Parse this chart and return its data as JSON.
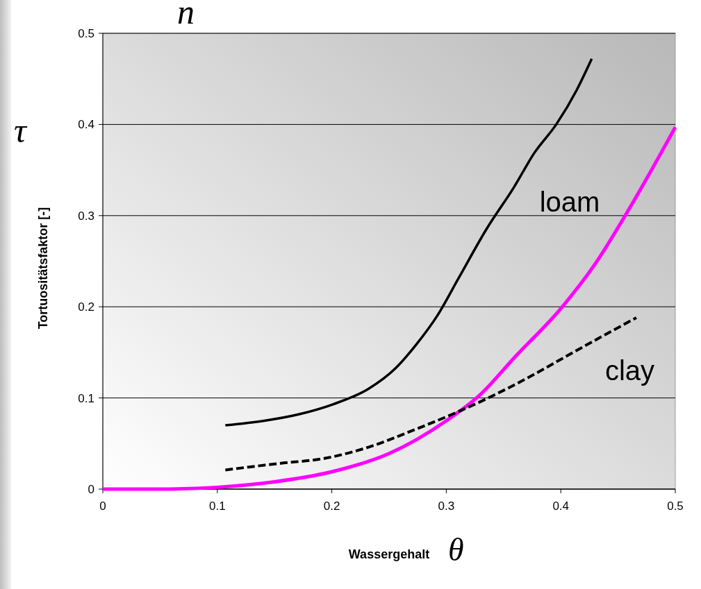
{
  "chart_data": {
    "type": "line",
    "xlabel": "Wassergehalt",
    "ylabel": "Tortuositätsfaktor [-]",
    "annotations": [
      "θ",
      "τ",
      "n"
    ],
    "xlim": [
      0,
      0.5
    ],
    "xticks": [
      0,
      0.1,
      0.2,
      0.3,
      0.4,
      0.5
    ],
    "ylim": [
      0,
      0.5
    ],
    "yticks": [
      0,
      0.1,
      0.2,
      0.3,
      0.4,
      0.5
    ],
    "grid": "y",
    "marker": "none",
    "series": [
      {
        "name": "loam",
        "color": "#000000",
        "line_style": "solid",
        "x": [
          0.107,
          0.141,
          0.171,
          0.201,
          0.232,
          0.256,
          0.274,
          0.292,
          0.311,
          0.335,
          0.359,
          0.377,
          0.396,
          0.414,
          0.427
        ],
        "values": [
          0.07,
          0.075,
          0.082,
          0.093,
          0.11,
          0.133,
          0.159,
          0.19,
          0.232,
          0.285,
          0.331,
          0.369,
          0.4,
          0.438,
          0.472
        ]
      },
      {
        "color": "#ff00ff",
        "line_style": "solid",
        "x": [
          0,
          0.05,
          0.1,
          0.15,
          0.2,
          0.25,
          0.3,
          0.33,
          0.36,
          0.4,
          0.43,
          0.46,
          0.5
        ],
        "values": [
          0,
          0,
          0.002,
          0.008,
          0.019,
          0.039,
          0.075,
          0.104,
          0.145,
          0.198,
          0.247,
          0.308,
          0.397
        ]
      },
      {
        "name": "clay",
        "color": "#000000",
        "line_style": "dashed",
        "x": [
          0.107,
          0.153,
          0.195,
          0.232,
          0.274,
          0.305,
          0.335,
          0.371,
          0.408,
          0.444,
          0.466
        ],
        "values": [
          0.021,
          0.028,
          0.034,
          0.046,
          0.066,
          0.082,
          0.099,
          0.122,
          0.148,
          0.173,
          0.188
        ]
      }
    ]
  }
}
